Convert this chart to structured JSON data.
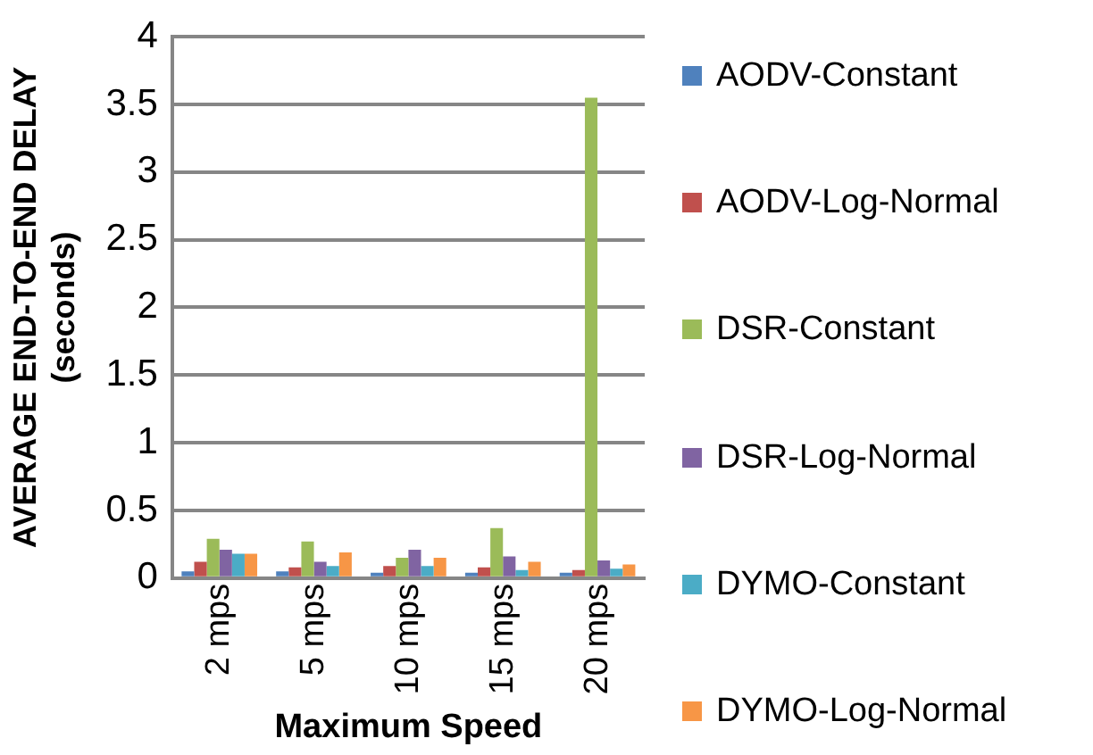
{
  "chart_data": {
    "type": "bar",
    "xlabel": "Maximum Speed",
    "ylabel": "AVERAGE END-TO-END DELAY\n(seconds)",
    "categories": [
      "2 mps",
      "5 mps",
      "10 mps",
      "15 mps",
      "20 mps"
    ],
    "series": [
      {
        "name": "AODV-Constant",
        "color": "#4f81bd",
        "values": [
          0.05,
          0.05,
          0.04,
          0.04,
          0.04
        ]
      },
      {
        "name": "AODV-Log-Normal",
        "color": "#c0504d",
        "values": [
          0.12,
          0.08,
          0.09,
          0.08,
          0.06
        ]
      },
      {
        "name": "DSR-Constant",
        "color": "#9bbb59",
        "values": [
          0.29,
          0.27,
          0.15,
          0.37,
          3.55
        ]
      },
      {
        "name": "DSR-Log-Normal",
        "color": "#8064a2",
        "values": [
          0.21,
          0.12,
          0.21,
          0.16,
          0.13
        ]
      },
      {
        "name": "DYMO-Constant",
        "color": "#4bacc6",
        "values": [
          0.18,
          0.09,
          0.09,
          0.06,
          0.07
        ]
      },
      {
        "name": "DYMO-Log-Normal",
        "color": "#f79646",
        "values": [
          0.18,
          0.19,
          0.15,
          0.12,
          0.1
        ]
      }
    ],
    "ylim": [
      0,
      4
    ],
    "yticks": [
      0,
      0.5,
      1,
      1.5,
      2,
      2.5,
      3,
      3.5,
      4
    ],
    "grid": "y",
    "legend": "right"
  }
}
